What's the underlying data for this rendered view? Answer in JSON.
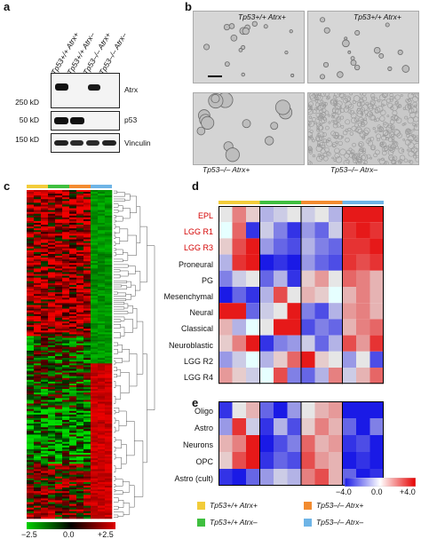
{
  "panel_letters": {
    "a": "a",
    "b": "b",
    "c": "c",
    "d": "d",
    "e": "e"
  },
  "panel_a": {
    "lanes": [
      "Tp53+/+ Atrx+",
      "Tp53+/+ Atrx–",
      "Tp53–/– Atrx+",
      "Tp53–/– Atrx–"
    ],
    "blots": [
      {
        "name": "Atrx",
        "marker": "250 kD"
      },
      {
        "name": "p53",
        "marker": "50 kD"
      },
      {
        "name": "Vinculin",
        "marker": "150 kD"
      }
    ]
  },
  "panel_b": {
    "images": [
      "Tp53+/+ Atrx+",
      "Tp53+/+ Atrx+",
      "Tp53–/– Atrx+",
      "Tp53–/– Atrx–"
    ]
  },
  "panel_c": {
    "colorbar_ticks": [
      "−2.5",
      "0.0",
      "+2.5"
    ],
    "colors": {
      "low": "#00c800",
      "mid": "#000000",
      "high": "#e00000"
    }
  },
  "panel_d": {
    "rows": [
      "EPL",
      "LGG R1",
      "LGG R3",
      "Proneural",
      "PG",
      "Mesenchymal",
      "Neural",
      "Classical",
      "Neuroblastic",
      "LGG R2",
      "LGG R4"
    ],
    "highlight_rows": [
      "EPL",
      "LGG R1",
      "LGG R3"
    ],
    "highlight_color": "#d40000"
  },
  "panel_e": {
    "rows": [
      "Oligo",
      "Astro",
      "Neurons",
      "OPC",
      "Astro (cult)"
    ]
  },
  "legend": {
    "groups": [
      {
        "label": "Tp53+/+ Atrx+",
        "color": "#f2cc3a"
      },
      {
        "label": "Tp53–/– Atrx+",
        "color": "#f28b30"
      },
      {
        "label": "Tp53+/+ Atrx–",
        "color": "#3fbf3f"
      },
      {
        "label": "Tp53–/– Atrx–",
        "color": "#6eb4e6"
      }
    ],
    "colorbar_ticks": [
      "−4.0",
      "0.0",
      "+4.0"
    ],
    "colors": {
      "low": "#1a1ae6",
      "mid": "#ffffff",
      "high": "#e60000"
    }
  }
}
